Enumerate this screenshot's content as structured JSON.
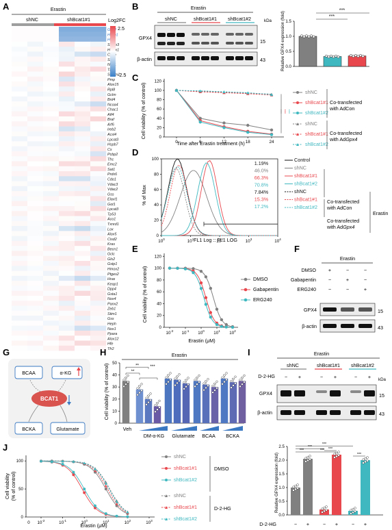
{
  "panels": {
    "a": {
      "label": "A",
      "title": "Erastin",
      "groups": [
        "shNC",
        "shBcat1#1"
      ],
      "colorbar": {
        "title": "Log2FC",
        "max": "2.5",
        "min": "-2.5"
      },
      "genes": [
        "Gpx4",
        "Hspb1",
        "Hsf1",
        "Steap3",
        "Hmox1",
        "Cybb",
        "Sat2",
        "Nqo1",
        "Tf",
        "Sqstm1",
        "Pmp",
        "Alox15",
        "Rpl8",
        "Gclm",
        "Brd4",
        "Ncoa4",
        "Chac1",
        "Atf4",
        "Braf",
        "Arf6",
        "Ireb2",
        "Acsl4",
        "Lpcat3",
        "Hspb7",
        "Cs",
        "Pcbp2",
        "Tfrc",
        "Emc2",
        "Sat1",
        "Prdx6",
        "Cdo1",
        "Vdac3",
        "Vdac2",
        "Gss",
        "Elavl1",
        "Got1",
        "Lpcat3",
        "Tp53",
        "Aco1",
        "Txnrd1",
        "Lox",
        "Alox5",
        "Cisd2",
        "Kras",
        "Becn1",
        "Gclc",
        "Gls2",
        "Gstp1",
        "Hmox2",
        "Ptges2",
        "Hras",
        "Keap1",
        "Dpp4",
        "Gsta1",
        "Nox4",
        "Panx2",
        "Zeb1",
        "Stim1",
        "Gss",
        "Heph",
        "Nox1",
        "Ppara",
        "Alox12",
        "Hfe",
        "Tfr2"
      ],
      "highlight_genes": [
        "Gpx4",
        "Hspb1",
        "Hsf1"
      ]
    },
    "b": {
      "label": "B",
      "title": "Erastin",
      "lanes": [
        "shNC",
        "shBcat1#1",
        "shBcat1#2"
      ],
      "proteins": [
        "GPX4",
        "β-actin"
      ],
      "kda_unit": "kDa",
      "mw": [
        "15",
        "43"
      ],
      "bar_ylabel": "Relative GPX4 expression (fold)",
      "sig": [
        "***",
        "***"
      ]
    },
    "c": {
      "label": "C",
      "xlabel": "Time after Erastin treatment (h)",
      "ylabel": "Cell viability (% of control)",
      "legend": [
        "shNC",
        "shBcat1#1",
        "shBcat1#2",
        "shNC",
        "shBcat1#1",
        "shBcat1#2"
      ],
      "group1": "Co-transfected with AdCon",
      "group2": "Co-transfected with AdGpx4",
      "sig": "***"
    },
    "d": {
      "label": "D",
      "xlabel": "FL1 Log :: FL1 LOG",
      "ylabel": "% of Max",
      "percents": [
        "1.19%",
        "46.0%",
        "66.3%",
        "70.8%",
        "7.84%",
        "15.3%",
        "17.2%"
      ],
      "legend": [
        "Control",
        "shNC",
        "shBcat1#1",
        "shBcat1#2",
        "shNC",
        "shBcat1#1",
        "shBcat1#2"
      ],
      "group1": "Co-transfected with AdCon",
      "group2": "Co-transfected with AdGpx4",
      "treatment": "Erastin"
    },
    "e": {
      "label": "E",
      "xlabel": "Erastin (μM)",
      "ylabel": "Cell viability (% of control)",
      "legend": [
        "DMSO",
        "Gabapentin",
        "ERG240"
      ]
    },
    "f": {
      "label": "F",
      "title": "Erastin",
      "rows": [
        "DMSO",
        "Gabapentin",
        "ERG240"
      ],
      "signs": [
        [
          "+",
          "−",
          "−"
        ],
        [
          "−",
          "+",
          "−"
        ],
        [
          "−",
          "−",
          "+"
        ]
      ],
      "proteins": [
        "GPX4",
        "β-actin"
      ],
      "mw": [
        "15",
        "43"
      ]
    },
    "g": {
      "label": "G",
      "nodes": [
        "BCAA",
        "α-KG",
        "BCAT1",
        "BCKA",
        "Glutamate"
      ]
    },
    "h": {
      "label": "H",
      "title": "Erastin",
      "ylabel": "Cell viability (% of control)",
      "groups": [
        "Veh",
        "DM-α-KG",
        "Glutamate",
        "BCAA",
        "BCKA"
      ],
      "sig": [
        "**",
        "**",
        "***"
      ]
    },
    "i": {
      "label": "I",
      "title": "Erastin",
      "lanes": [
        "shNC",
        "shBcat1#1",
        "shBcat1#2"
      ],
      "treatment": "D-2-HG",
      "signs": [
        "−",
        "+",
        "−",
        "+",
        "−",
        "+"
      ],
      "proteins": [
        "GPX4",
        "β-actin"
      ],
      "kda_unit": "kDa",
      "mw": [
        "15",
        "43"
      ],
      "bar_ylabel": "Relative GPX4 expression (fold)",
      "sig": [
        "***",
        "***",
        "***",
        "***",
        "***",
        "***"
      ]
    },
    "j": {
      "label": "J",
      "xlabel": "Erastin (μM)",
      "ylabel": "Cell viability (% of control)",
      "legend": [
        "shNC",
        "shBcat1#1",
        "shBcat1#2",
        "shNC",
        "shBcat1#1",
        "shBcat1#2"
      ],
      "group1": "DMSO",
      "group2": "D-2-HG"
    }
  },
  "colors": {
    "grey": "#808080",
    "red": "#e8474d",
    "teal": "#3fb8c0",
    "blue": "#3a78c2",
    "purple": "#6f5fa0",
    "heat_pos": "#e05060",
    "heat_neg": "#3a7fc8"
  },
  "chart_data": [
    {
      "type": "heatmap",
      "title": "Erastin",
      "columns": [
        "shNC",
        "shNC",
        "shNC",
        "shBcat1#1",
        "shBcat1#1",
        "shBcat1#1"
      ],
      "rows_note_values": "Log2FC, range -2.5 to 2.5",
      "highlight_rows": {
        "Gpx4": -1.5,
        "Hspb1": -1.4,
        "Hsf1": -1.3
      }
    },
    {
      "type": "bar",
      "title": "B",
      "categories": [
        "shNC",
        "shBcat1#1",
        "shBcat1#2"
      ],
      "values": [
        1.0,
        0.33,
        0.35
      ],
      "ylim": [
        0,
        1.5
      ],
      "yticks": [
        "0.0",
        "0.5",
        "1.0",
        "1.5"
      ]
    },
    {
      "type": "line",
      "title": "C",
      "x": [
        0,
        6,
        12,
        18,
        24
      ],
      "xticks": [
        "0",
        "6",
        "12",
        "18",
        "24"
      ],
      "ylim": [
        0,
        125
      ],
      "yticks": [
        "0",
        "20",
        "40",
        "60",
        "80",
        "100",
        "120"
      ],
      "series": [
        {
          "name": "shNC",
          "group": "AdCon",
          "values": [
            100,
            40,
            30,
            25,
            15
          ]
        },
        {
          "name": "shBcat1#1",
          "group": "AdCon",
          "values": [
            100,
            35,
            22,
            12,
            6
          ]
        },
        {
          "name": "shBcat1#2",
          "group": "AdCon",
          "values": [
            100,
            32,
            20,
            10,
            5
          ]
        },
        {
          "name": "shNC",
          "group": "AdGpx4",
          "values": [
            100,
            98,
            96,
            94,
            92
          ]
        },
        {
          "name": "shBcat1#1",
          "group": "AdGpx4",
          "values": [
            100,
            97,
            95,
            93,
            90
          ]
        },
        {
          "name": "shBcat1#2",
          "group": "AdGpx4",
          "values": [
            100,
            99,
            97,
            95,
            91
          ]
        }
      ]
    },
    {
      "type": "line",
      "title": "D",
      "x_log": true,
      "xlim": [
        1,
        10000
      ],
      "xticks": [
        "10^0",
        "10^1",
        "10^2",
        "10^3",
        "10^4"
      ],
      "ylim": [
        0,
        100
      ],
      "yticks": [
        "0",
        "20",
        "40",
        "60",
        "80",
        "100"
      ]
    },
    {
      "type": "line",
      "title": "E",
      "x_log": true,
      "xticks": [
        "10^-2",
        "10^-1",
        "10^0",
        "10^1",
        "10^2"
      ],
      "ylim": [
        0,
        125
      ],
      "yticks": [
        "0",
        "20",
        "40",
        "60",
        "80",
        "100",
        "120"
      ],
      "series": [
        {
          "name": "DMSO",
          "ic50": 6
        },
        {
          "name": "Gabapentin",
          "ic50": 2
        },
        {
          "name": "ERG240",
          "ic50": 1.5
        }
      ]
    },
    {
      "type": "bar",
      "title": "H",
      "categories": [
        "Veh",
        "DM-α-KG 1",
        "DM-α-KG 2",
        "DM-α-KG 3",
        "Glutamate 1",
        "Glutamate 2",
        "Glutamate 3",
        "BCAA 1",
        "BCAA 2",
        "BCAA 3",
        "BCKA 1",
        "BCKA 2",
        "BCKA 3"
      ],
      "values": [
        35,
        28,
        20,
        14,
        37,
        36,
        33,
        35,
        32,
        30,
        37,
        34,
        35
      ],
      "ylim": [
        0,
        50
      ],
      "yticks": [
        "0",
        "10",
        "20",
        "30",
        "40",
        "50"
      ]
    },
    {
      "type": "bar",
      "title": "I",
      "categories": [
        "shNC −",
        "shNC +",
        "shBcat1#1 −",
        "shBcat1#1 +",
        "shBcat1#2 −",
        "shBcat1#2 +"
      ],
      "values": [
        1.0,
        2.05,
        0.2,
        2.2,
        0.15,
        2.0
      ],
      "ylim": [
        0,
        2.5
      ],
      "yticks": [
        "0.0",
        "0.5",
        "1.0",
        "1.5",
        "2.0",
        "2.5"
      ]
    },
    {
      "type": "line",
      "title": "J",
      "x_log": true,
      "xticks": [
        "0",
        "10^-2",
        "10^-1",
        "10^0",
        "10^1",
        "10^2",
        "10^3"
      ],
      "ylim": [
        0,
        110
      ],
      "yticks": [
        "0",
        "50",
        "100"
      ],
      "series": [
        {
          "name": "shNC",
          "group": "DMSO",
          "ic50": 10
        },
        {
          "name": "shBcat1#1",
          "group": "DMSO",
          "ic50": 0.8
        },
        {
          "name": "shBcat1#2",
          "group": "DMSO",
          "ic50": 1
        },
        {
          "name": "shNC",
          "group": "D-2-HG",
          "ic50": 15
        },
        {
          "name": "shBcat1#1",
          "group": "D-2-HG",
          "ic50": 12
        },
        {
          "name": "shBcat1#2",
          "group": "D-2-HG",
          "ic50": 14
        }
      ]
    }
  ]
}
